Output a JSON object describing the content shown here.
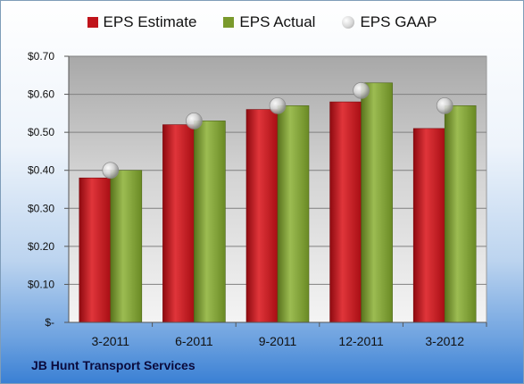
{
  "chart_data": {
    "type": "bar",
    "categories": [
      "3-2011",
      "6-2011",
      "9-2011",
      "12-2011",
      "3-2012"
    ],
    "series": [
      {
        "name": "EPS Estimate",
        "values": [
          0.38,
          0.52,
          0.56,
          0.58,
          0.51
        ],
        "color": "#c0141b"
      },
      {
        "name": "EPS Actual",
        "values": [
          0.4,
          0.53,
          0.57,
          0.63,
          0.57
        ],
        "color": "#7a9a2c"
      },
      {
        "name": "EPS GAAP",
        "values": [
          0.4,
          0.53,
          0.57,
          0.61,
          0.57
        ],
        "color": "#c8c8c8",
        "marker": "circle"
      }
    ],
    "ylim": [
      0,
      0.7
    ],
    "yticks": [
      0,
      0.1,
      0.2,
      0.3,
      0.4,
      0.5,
      0.6,
      0.7
    ],
    "ytick_labels": [
      "$-",
      "$0.10",
      "$0.20",
      "$0.30",
      "$0.40",
      "$0.50",
      "$0.60",
      "$0.70"
    ],
    "grid": true,
    "legend_position": "top"
  },
  "footer": {
    "company": "JB Hunt Transport Services"
  }
}
